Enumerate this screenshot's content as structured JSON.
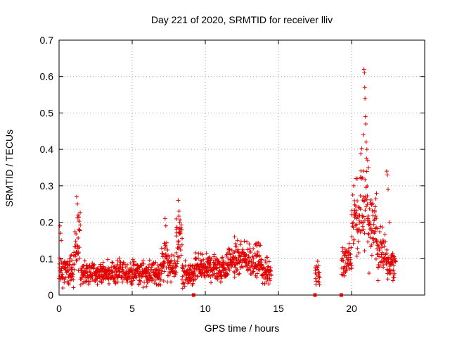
{
  "chart_data": {
    "type": "scatter",
    "title": "Day 221 of 2020, SRMTID for receiver lliv",
    "xlabel": "GPS time / hours",
    "ylabel": "SRMTID / TECUs",
    "xlim": [
      0,
      25
    ],
    "ylim": [
      0,
      0.7
    ],
    "xticks": [
      0,
      5,
      10,
      15,
      20
    ],
    "yticks": [
      0,
      0.1,
      0.2,
      0.3,
      0.4,
      0.5,
      0.6,
      0.7
    ],
    "xtick_labels": [
      "0",
      "5",
      "10",
      "15",
      "20"
    ],
    "ytick_labels": [
      "0",
      "0.1",
      "0.2",
      "0.3",
      "0.4",
      "0.5",
      "0.6",
      "0.7"
    ],
    "grid": true,
    "marker": "plus",
    "color": "#e00000",
    "series": [
      {
        "name": "SRMTID",
        "segments": [
          {
            "x_start": 0.0,
            "x_end": 1.0,
            "base": 0.065,
            "spread": 0.03
          },
          {
            "x_start": 1.0,
            "x_end": 1.45,
            "base": 0.14,
            "spread": 0.07
          },
          {
            "x_start": 1.45,
            "x_end": 7.0,
            "base": 0.06,
            "spread": 0.025
          },
          {
            "x_start": 7.0,
            "x_end": 7.5,
            "base": 0.1,
            "spread": 0.05
          },
          {
            "x_start": 7.5,
            "x_end": 8.0,
            "base": 0.07,
            "spread": 0.03
          },
          {
            "x_start": 8.0,
            "x_end": 8.4,
            "base": 0.15,
            "spread": 0.07
          },
          {
            "x_start": 8.4,
            "x_end": 9.3,
            "base": 0.055,
            "spread": 0.025
          },
          {
            "x_start": 9.3,
            "x_end": 11.5,
            "base": 0.075,
            "spread": 0.03
          },
          {
            "x_start": 11.5,
            "x_end": 13.8,
            "base": 0.095,
            "spread": 0.035
          },
          {
            "x_start": 13.8,
            "x_end": 14.5,
            "base": 0.065,
            "spread": 0.03
          },
          {
            "x_start": 17.5,
            "x_end": 17.8,
            "base": 0.06,
            "spread": 0.03
          },
          {
            "x_start": 19.3,
            "x_end": 20.0,
            "base": 0.09,
            "spread": 0.04
          },
          {
            "x_start": 20.0,
            "x_end": 20.6,
            "base": 0.2,
            "spread": 0.08
          },
          {
            "x_start": 20.6,
            "x_end": 21.1,
            "base": 0.25,
            "spread": 0.12
          },
          {
            "x_start": 21.1,
            "x_end": 21.7,
            "base": 0.2,
            "spread": 0.07
          },
          {
            "x_start": 21.7,
            "x_end": 22.4,
            "base": 0.12,
            "spread": 0.05
          },
          {
            "x_start": 22.4,
            "x_end": 23.0,
            "base": 0.09,
            "spread": 0.04
          }
        ],
        "spikes": [
          {
            "x": 1.2,
            "y": 0.27
          },
          {
            "x": 1.25,
            "y": 0.25
          },
          {
            "x": 1.3,
            "y": 0.22
          },
          {
            "x": 1.35,
            "y": 0.18
          },
          {
            "x": 7.25,
            "y": 0.21
          },
          {
            "x": 7.3,
            "y": 0.19
          },
          {
            "x": 8.15,
            "y": 0.26
          },
          {
            "x": 8.2,
            "y": 0.23
          },
          {
            "x": 8.25,
            "y": 0.2
          },
          {
            "x": 8.3,
            "y": 0.17
          },
          {
            "x": 0.05,
            "y": 0.19
          },
          {
            "x": 0.1,
            "y": 0.17
          },
          {
            "x": 0.15,
            "y": 0.15
          },
          {
            "x": 12.0,
            "y": 0.16
          },
          {
            "x": 12.2,
            "y": 0.15
          },
          {
            "x": 13.0,
            "y": 0.14
          },
          {
            "x": 20.15,
            "y": 0.3
          },
          {
            "x": 20.3,
            "y": 0.32
          },
          {
            "x": 20.85,
            "y": 0.62
          },
          {
            "x": 20.88,
            "y": 0.61
          },
          {
            "x": 20.9,
            "y": 0.57
          },
          {
            "x": 20.92,
            "y": 0.54
          },
          {
            "x": 20.95,
            "y": 0.49
          },
          {
            "x": 20.97,
            "y": 0.47
          },
          {
            "x": 21.0,
            "y": 0.42
          },
          {
            "x": 21.05,
            "y": 0.4
          },
          {
            "x": 21.1,
            "y": 0.37
          },
          {
            "x": 21.15,
            "y": 0.35
          },
          {
            "x": 20.8,
            "y": 0.44
          },
          {
            "x": 22.4,
            "y": 0.34
          },
          {
            "x": 22.45,
            "y": 0.33
          },
          {
            "x": 22.5,
            "y": 0.29
          },
          {
            "x": 22.6,
            "y": 0.2
          },
          {
            "x": 21.2,
            "y": 0.06
          }
        ]
      },
      {
        "name": "gap markers",
        "marker": "square",
        "points": [
          {
            "x": 9.2,
            "y": 0
          },
          {
            "x": 17.5,
            "y": 0
          },
          {
            "x": 19.3,
            "y": 0
          }
        ]
      }
    ]
  }
}
